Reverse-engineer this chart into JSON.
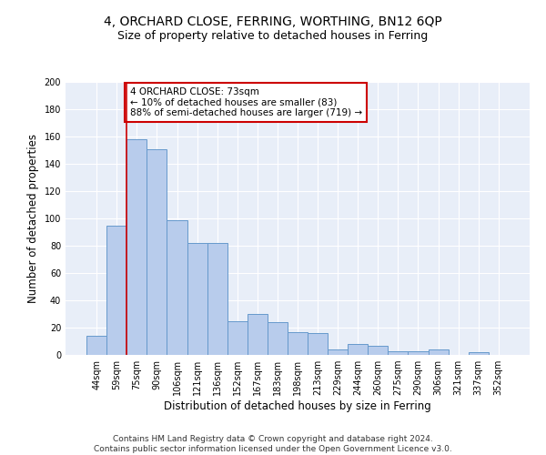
{
  "title1": "4, ORCHARD CLOSE, FERRING, WORTHING, BN12 6QP",
  "title2": "Size of property relative to detached houses in Ferring",
  "xlabel": "Distribution of detached houses by size in Ferring",
  "ylabel": "Number of detached properties",
  "categories": [
    "44sqm",
    "59sqm",
    "75sqm",
    "90sqm",
    "106sqm",
    "121sqm",
    "136sqm",
    "152sqm",
    "167sqm",
    "183sqm",
    "198sqm",
    "213sqm",
    "229sqm",
    "244sqm",
    "260sqm",
    "275sqm",
    "290sqm",
    "306sqm",
    "321sqm",
    "337sqm",
    "352sqm"
  ],
  "values": [
    14,
    95,
    158,
    151,
    99,
    82,
    82,
    25,
    30,
    24,
    17,
    16,
    4,
    8,
    7,
    3,
    3,
    4,
    0,
    2,
    0
  ],
  "bar_color": "#b8ccec",
  "bar_edge_color": "#6699cc",
  "background_color": "#e8eef8",
  "grid_color": "#ffffff",
  "redline_index": 1.5,
  "annotation_text": "4 ORCHARD CLOSE: 73sqm\n← 10% of detached houses are smaller (83)\n88% of semi-detached houses are larger (719) →",
  "annotation_box_color": "#ffffff",
  "annotation_box_edge": "#cc0000",
  "redline_color": "#cc0000",
  "ylim": [
    0,
    200
  ],
  "yticks": [
    0,
    20,
    40,
    60,
    80,
    100,
    120,
    140,
    160,
    180,
    200
  ],
  "footer": "Contains HM Land Registry data © Crown copyright and database right 2024.\nContains public sector information licensed under the Open Government Licence v3.0.",
  "title1_fontsize": 10,
  "title2_fontsize": 9,
  "xlabel_fontsize": 8.5,
  "ylabel_fontsize": 8.5,
  "tick_fontsize": 7,
  "footer_fontsize": 6.5,
  "annotation_fontsize": 7.5
}
